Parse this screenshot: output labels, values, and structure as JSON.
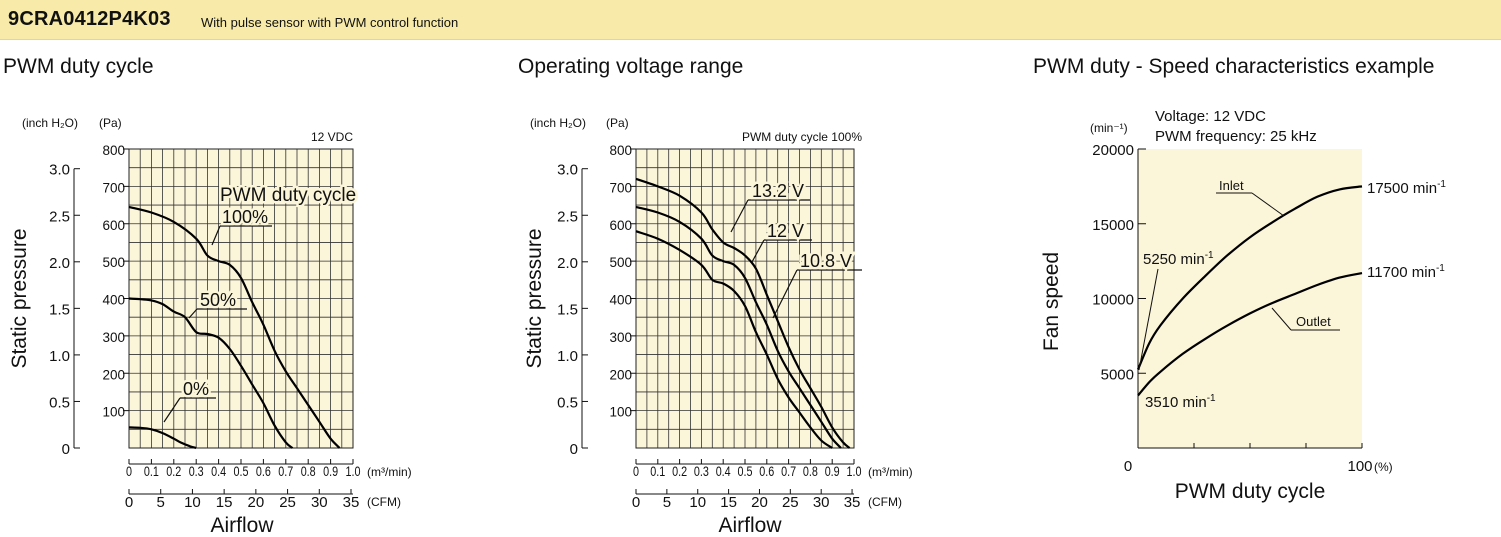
{
  "header": {
    "model": "9CRA0412P4K03",
    "description": "With pulse sensor with PWM control function"
  },
  "colors": {
    "header_bg": "#f8eaa8",
    "plot_bg": "#fbf5d9",
    "grid": "#222222",
    "curve": "#000000"
  },
  "chart_data": [
    {
      "type": "line",
      "title": "PWM duty cycle",
      "condition": "12 VDC",
      "legend_title": "PWM duty cycle",
      "xlabel": "Airflow",
      "x_unit_top": "(m³/min)",
      "x_unit_bottom": "(CFM)",
      "ylabel": "Static pressure",
      "y_unit_left": "(inch H₂O)",
      "y_unit_right": "(Pa)",
      "xlim": [
        0,
        1.0
      ],
      "ylim": [
        0,
        800
      ],
      "grid": true,
      "x_ticks_m3min": [
        "0",
        "0.1",
        "0.2",
        "0.3",
        "0.4",
        "0.5",
        "0.6",
        "0.7",
        "0.8",
        "0.9",
        "1.0"
      ],
      "x_ticks_cfm": [
        "0",
        "5",
        "10",
        "15",
        "20",
        "25",
        "30",
        "35"
      ],
      "y_ticks_pa": [
        "100",
        "200",
        "300",
        "400",
        "500",
        "600",
        "700",
        "800"
      ],
      "y_ticks_inch": [
        "0",
        "0.5",
        "1.0",
        "1.5",
        "2.0",
        "2.5",
        "3.0"
      ],
      "series": [
        {
          "name": "100%",
          "x": [
            0,
            0.1,
            0.2,
            0.3,
            0.35,
            0.4,
            0.45,
            0.5,
            0.55,
            0.6,
            0.65,
            0.7,
            0.75,
            0.8,
            0.85,
            0.9,
            0.94
          ],
          "y": [
            645,
            630,
            605,
            560,
            515,
            500,
            490,
            455,
            390,
            330,
            260,
            205,
            160,
            115,
            70,
            25,
            0
          ]
        },
        {
          "name": "50%",
          "x": [
            0,
            0.05,
            0.1,
            0.15,
            0.2,
            0.25,
            0.3,
            0.35,
            0.4,
            0.45,
            0.5,
            0.55,
            0.6,
            0.65,
            0.7,
            0.73
          ],
          "y": [
            400,
            398,
            395,
            385,
            365,
            350,
            310,
            305,
            295,
            265,
            220,
            170,
            120,
            60,
            15,
            0
          ]
        },
        {
          "name": "0%",
          "x": [
            0,
            0.05,
            0.1,
            0.15,
            0.2,
            0.23,
            0.27,
            0.3
          ],
          "y": [
            55,
            54,
            50,
            40,
            25,
            15,
            5,
            0
          ]
        }
      ]
    },
    {
      "type": "line",
      "title": "Operating voltage range",
      "condition": "PWM duty cycle 100%",
      "xlabel": "Airflow",
      "x_unit_top": "(m³/min)",
      "x_unit_bottom": "(CFM)",
      "ylabel": "Static pressure",
      "y_unit_left": "(inch H₂O)",
      "y_unit_right": "(Pa)",
      "xlim": [
        0,
        1.0
      ],
      "ylim": [
        0,
        800
      ],
      "grid": true,
      "x_ticks_m3min": [
        "0",
        "0.1",
        "0.2",
        "0.3",
        "0.4",
        "0.5",
        "0.6",
        "0.7",
        "0.8",
        "0.9",
        "1.0"
      ],
      "x_ticks_cfm": [
        "0",
        "5",
        "10",
        "15",
        "20",
        "25",
        "30",
        "35"
      ],
      "y_ticks_pa": [
        "100",
        "200",
        "300",
        "400",
        "500",
        "600",
        "700",
        "800"
      ],
      "y_ticks_inch": [
        "0",
        "0.5",
        "1.0",
        "1.5",
        "2.0",
        "2.5",
        "3.0"
      ],
      "series": [
        {
          "name": "13.2 V",
          "x": [
            0,
            0.1,
            0.2,
            0.3,
            0.35,
            0.4,
            0.45,
            0.5,
            0.55,
            0.6,
            0.65,
            0.7,
            0.75,
            0.8,
            0.85,
            0.9,
            0.95,
            0.98
          ],
          "y": [
            720,
            700,
            675,
            630,
            585,
            550,
            535,
            515,
            480,
            410,
            340,
            270,
            210,
            160,
            110,
            55,
            15,
            0
          ]
        },
        {
          "name": "12 V",
          "x": [
            0,
            0.1,
            0.2,
            0.3,
            0.35,
            0.4,
            0.45,
            0.5,
            0.55,
            0.6,
            0.65,
            0.7,
            0.75,
            0.8,
            0.85,
            0.9,
            0.94
          ],
          "y": [
            645,
            630,
            605,
            560,
            515,
            500,
            490,
            455,
            390,
            330,
            260,
            205,
            160,
            115,
            70,
            25,
            0
          ]
        },
        {
          "name": "10.8 V",
          "x": [
            0,
            0.1,
            0.2,
            0.3,
            0.35,
            0.4,
            0.45,
            0.5,
            0.55,
            0.6,
            0.65,
            0.7,
            0.75,
            0.8,
            0.85,
            0.9
          ],
          "y": [
            580,
            560,
            530,
            490,
            450,
            440,
            420,
            380,
            310,
            250,
            185,
            135,
            95,
            55,
            20,
            0
          ]
        }
      ]
    },
    {
      "type": "line",
      "title": "PWM duty - Speed characteristics example",
      "condition_lines": [
        "Voltage: 12 VDC",
        "PWM frequency: 25 kHz"
      ],
      "xlabel": "PWM duty cycle",
      "x_unit": "(%)",
      "ylabel": "Fan speed",
      "y_unit": "(min⁻¹)",
      "xlim": [
        0,
        100
      ],
      "ylim": [
        0,
        20000
      ],
      "grid": false,
      "x_ticks": [
        "0",
        "100"
      ],
      "y_ticks": [
        "5000",
        "10000",
        "15000",
        "20000"
      ],
      "series": [
        {
          "name": "Inlet",
          "x": [
            0,
            5,
            10,
            20,
            30,
            40,
            50,
            60,
            70,
            80,
            90,
            100
          ],
          "y": [
            5250,
            7000,
            8200,
            10000,
            11500,
            12900,
            14100,
            15100,
            16000,
            16800,
            17300,
            17500
          ]
        },
        {
          "name": "Outlet",
          "x": [
            0,
            5,
            10,
            20,
            30,
            40,
            50,
            60,
            70,
            80,
            90,
            100
          ],
          "y": [
            3510,
            4400,
            5100,
            6300,
            7300,
            8200,
            9000,
            9700,
            10300,
            10900,
            11400,
            11700
          ]
        }
      ],
      "annotations": [
        {
          "label": "5250",
          "unit": "min",
          "sup": "-1"
        },
        {
          "label": "3510",
          "unit": "min",
          "sup": "-1"
        },
        {
          "label": "17500",
          "unit": "min",
          "sup": "-1"
        },
        {
          "label": "11700",
          "unit": "min",
          "sup": "-1"
        }
      ]
    }
  ]
}
